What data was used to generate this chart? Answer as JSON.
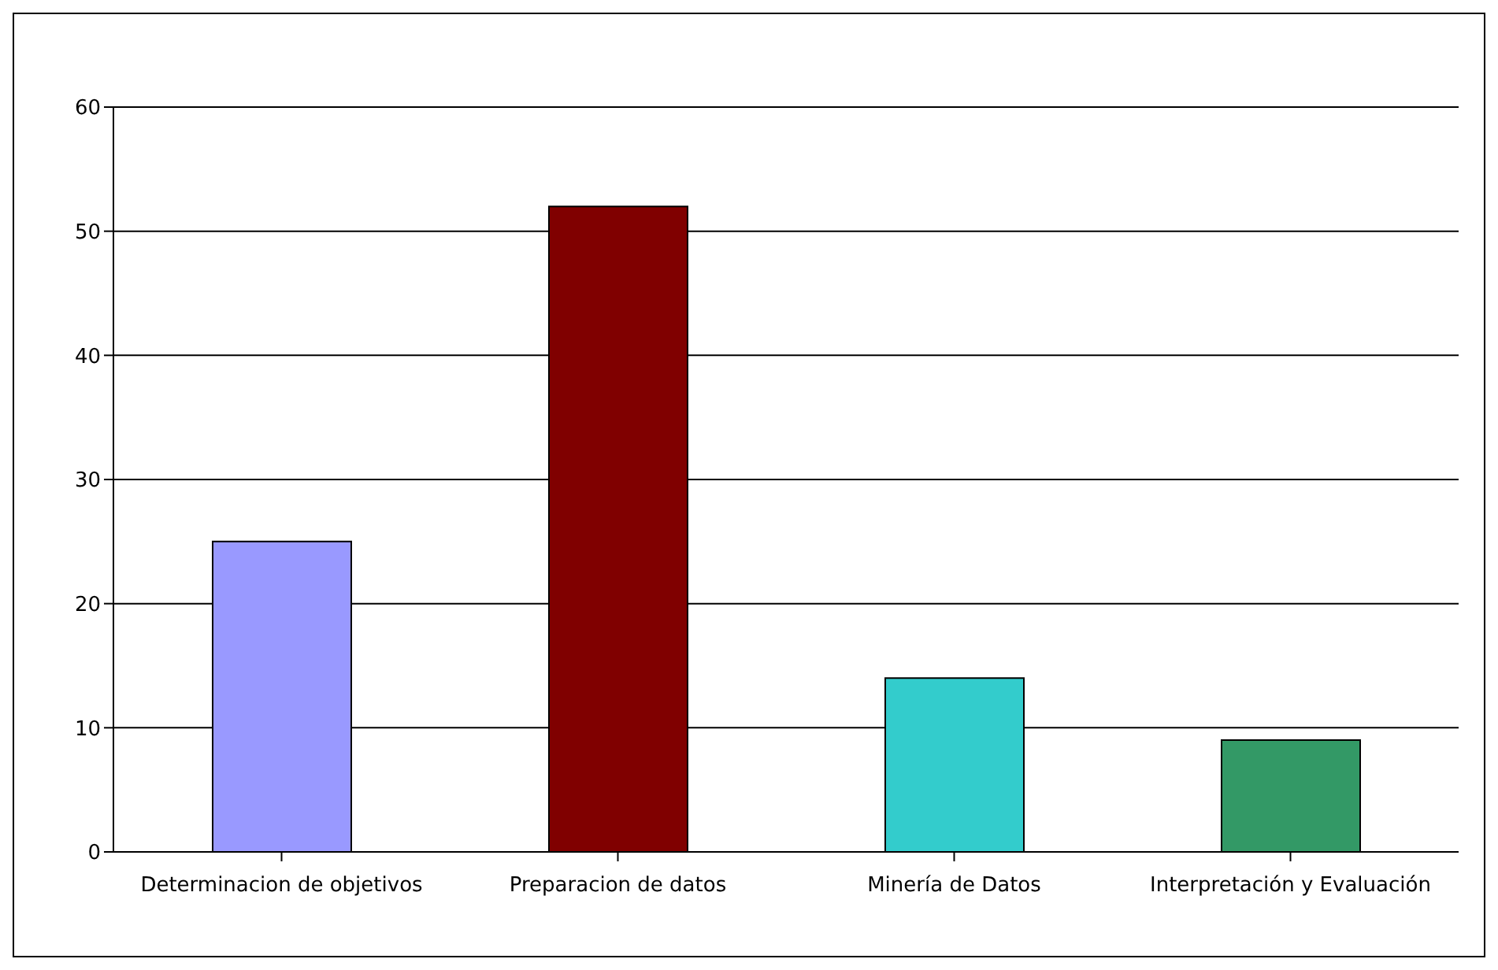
{
  "chart_data": {
    "type": "bar",
    "categories": [
      "Determinacion de objetivos",
      "Preparacion de datos",
      "Minería de Datos",
      "Interpretación y Evaluación"
    ],
    "values": [
      25,
      52,
      14,
      9
    ],
    "colors": [
      "#9999ff",
      "#800000",
      "#33cccc",
      "#339966"
    ],
    "ylim": [
      0,
      60
    ],
    "yticks": [
      0,
      10,
      20,
      30,
      40,
      50,
      60
    ],
    "grid": "y"
  }
}
